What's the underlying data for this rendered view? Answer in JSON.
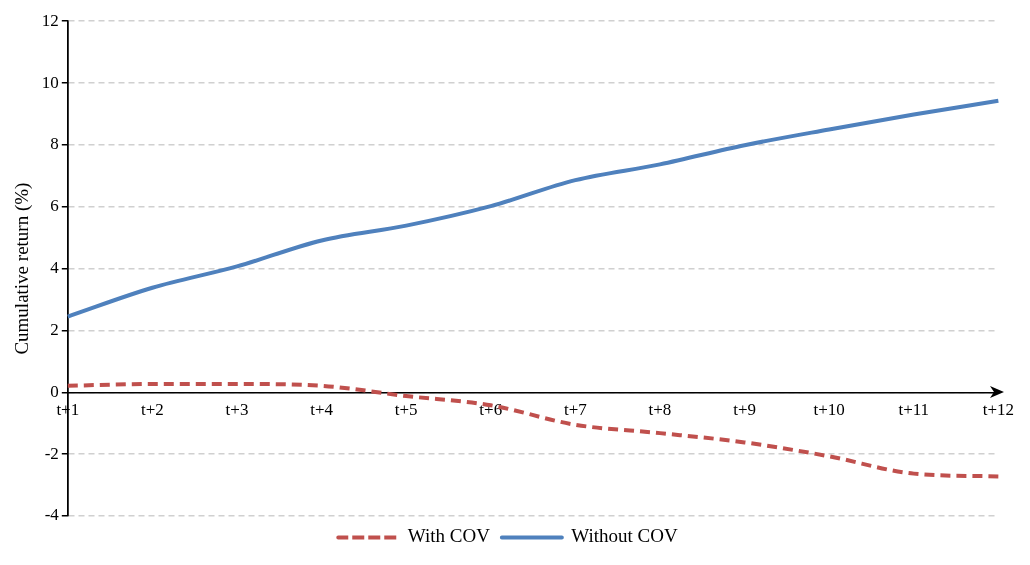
{
  "chart_data": {
    "type": "line",
    "ylabel": "Cumulative return (%)",
    "categories": [
      "t+1",
      "t+2",
      "t+3",
      "t+4",
      "t+5",
      "t+6",
      "t+7",
      "t+8",
      "t+9",
      "t+10",
      "t+11",
      "t+12"
    ],
    "series": [
      {
        "name": "With COV",
        "color": "#c0504d",
        "line_style": "dashed",
        "values": [
          0.21,
          0.27,
          0.27,
          0.21,
          -0.12,
          -0.42,
          -1.05,
          -1.32,
          -1.62,
          -2.07,
          -2.63,
          -2.72
        ]
      },
      {
        "name": "Without COV",
        "color": "#4f81bd",
        "line_style": "solid",
        "values": [
          2.45,
          3.38,
          4.07,
          4.91,
          5.39,
          6.02,
          6.86,
          7.37,
          7.99,
          8.5,
          8.98,
          9.43
        ]
      }
    ],
    "ylim": [
      -4,
      12
    ],
    "yticks": [
      -4,
      -2,
      0,
      2,
      4,
      6,
      8,
      10,
      12
    ],
    "grid": "y",
    "legend": "bottom",
    "marker": "none"
  }
}
